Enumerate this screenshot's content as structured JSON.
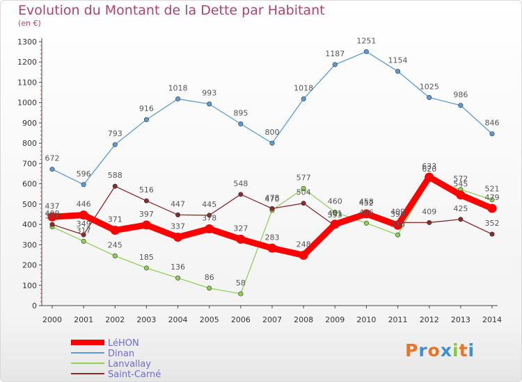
{
  "header": {
    "title": "Evolution du Montant de la Dette par Habitant",
    "subtitle": "(en €)"
  },
  "logo": {
    "text": "Proxiti",
    "colors": [
      "#e8742a",
      "#3f8fd1",
      "#e8742a",
      "#3f8fd1",
      "#8cc63f",
      "#e8742a",
      "#3f8fd1"
    ]
  },
  "chart_data": {
    "type": "line",
    "x": [
      "2000",
      "2001",
      "2002",
      "2003",
      "2004",
      "2005",
      "2006",
      "2007",
      "2008",
      "2009",
      "2010",
      "2011",
      "2012",
      "2013",
      "2014"
    ],
    "ylim": [
      0,
      1300
    ],
    "yticks": [
      0,
      100,
      200,
      300,
      400,
      500,
      600,
      700,
      800,
      900,
      1000,
      1100,
      1200,
      1300
    ],
    "grid": false,
    "legend_position": "bottom-left",
    "series": [
      {
        "name": "LéHON",
        "color": "#ff0000",
        "values": [
          437,
          446,
          371,
          397,
          337,
          378,
          327,
          283,
          248,
          401,
          452,
          396,
          633,
          545,
          479
        ]
      },
      {
        "name": "Dinan",
        "color": "#5a9bd5",
        "values": [
          672,
          596,
          793,
          916,
          1018,
          993,
          895,
          800,
          1018,
          1187,
          1251,
          1154,
          1025,
          986,
          846
        ]
      },
      {
        "name": "Lanvallay",
        "color": "#8ed058",
        "values": [
          388,
          317,
          245,
          185,
          136,
          86,
          58,
          470,
          577,
          460,
          406,
          348,
          620,
          572,
          521
        ]
      },
      {
        "name": "Saint-Carné",
        "color": "#8b2a2a",
        "values": [
          400,
          349,
          588,
          516,
          447,
          445,
          548,
          478,
          504,
          393,
          458,
          409,
          409,
          425,
          352
        ]
      }
    ],
    "data_labels": [
      [
        "437",
        "446",
        "371",
        "397",
        "337",
        "378",
        "327",
        "283",
        "248",
        "401",
        "452",
        "396",
        "633",
        "545",
        "479"
      ],
      [
        "672",
        "596",
        "793",
        "916",
        "1018",
        "993",
        "895",
        "800",
        "1018",
        "1187",
        "1251",
        "1154",
        "1025",
        "986",
        "846"
      ],
      [
        "388",
        "317",
        "245",
        "185",
        "136",
        "86",
        "58",
        "470",
        "577",
        "460",
        "406",
        "348",
        "620",
        "572",
        "521"
      ],
      [
        "400",
        "349",
        "588",
        "516",
        "447",
        "445",
        "548",
        "478",
        "504",
        "393",
        "458",
        "409",
        "409",
        "425",
        "352"
      ]
    ]
  }
}
